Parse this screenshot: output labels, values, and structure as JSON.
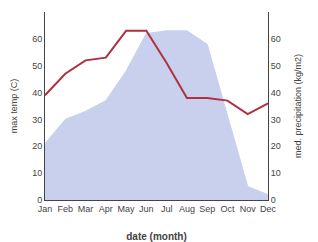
{
  "chart_data": {
    "type": "line",
    "categories": [
      "Jan",
      "Feb",
      "Mar",
      "Apr",
      "May",
      "Jun",
      "Jul",
      "Aug",
      "Sep",
      "Oct",
      "Nov",
      "Dec"
    ],
    "series": [
      {
        "type": "area",
        "axis": "y2",
        "color": "#c8d0ee",
        "values": [
          21,
          30,
          33,
          37,
          48,
          62,
          63,
          63,
          58,
          32,
          5,
          2
        ]
      },
      {
        "type": "line",
        "color": "#b03040",
        "values": [
          39,
          47,
          52,
          53,
          63,
          63,
          51,
          38,
          38,
          37,
          32,
          36
        ]
      }
    ],
    "xlabel": "date (month)",
    "ylabel": "max temp (C)",
    "y2label": "med. precipitation (kg/m2)",
    "ylim": [
      0,
      70
    ],
    "yticks": [
      0,
      10,
      20,
      30,
      40,
      50,
      60
    ],
    "y2lim": [
      0,
      70
    ],
    "y2ticks": [
      0,
      10,
      20,
      30,
      40,
      50,
      60
    ],
    "grid": false
  }
}
